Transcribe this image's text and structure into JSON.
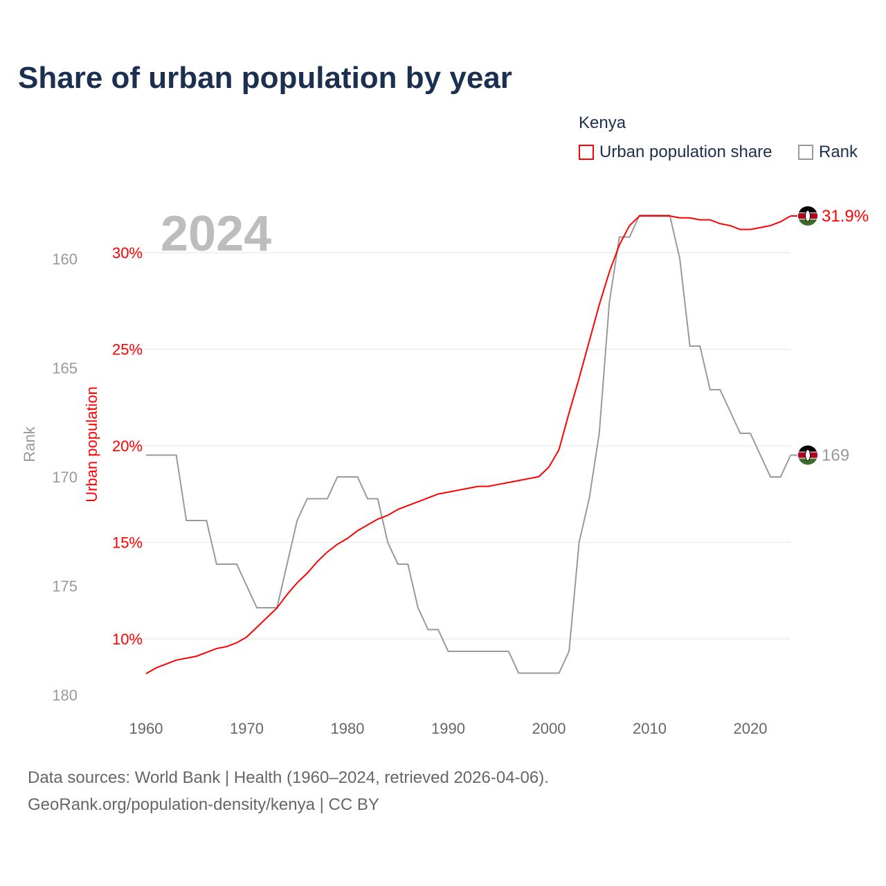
{
  "title": "Share of urban population by year",
  "legend": {
    "title": "Kenya",
    "items": [
      {
        "label": "Urban population share",
        "color": "#ff0000"
      },
      {
        "label": "Rank",
        "color": "#999999"
      }
    ]
  },
  "year_watermark": "2024",
  "footer": {
    "line1": "Data sources: World Bank | Health (1960–2024, retrieved 2026-04-06).",
    "line2": "GeoRank.org/population-density/kenya | CC BY"
  },
  "chart_data": {
    "type": "line",
    "title": "Share of urban population by year",
    "xlabel": "",
    "x": [
      1960,
      1961,
      1962,
      1963,
      1964,
      1965,
      1966,
      1967,
      1968,
      1969,
      1970,
      1971,
      1972,
      1973,
      1974,
      1975,
      1976,
      1977,
      1978,
      1979,
      1980,
      1981,
      1982,
      1983,
      1984,
      1985,
      1986,
      1987,
      1988,
      1989,
      1990,
      1991,
      1992,
      1993,
      1994,
      1995,
      1996,
      1997,
      1998,
      1999,
      2000,
      2001,
      2002,
      2003,
      2004,
      2005,
      2006,
      2007,
      2008,
      2009,
      2010,
      2011,
      2012,
      2013,
      2014,
      2015,
      2016,
      2017,
      2018,
      2019,
      2020,
      2021,
      2022,
      2023,
      2024
    ],
    "xticks": [
      "1960",
      "1970",
      "1980",
      "1990",
      "2000",
      "2010",
      "2020"
    ],
    "series": [
      {
        "name": "Urban population share",
        "axis": "left-inner",
        "ylabel": "Urban population",
        "color": "#ff0000",
        "end_label": "31.9%",
        "values": [
          8.2,
          8.5,
          8.7,
          8.9,
          9.0,
          9.1,
          9.3,
          9.5,
          9.6,
          9.8,
          10.1,
          10.6,
          11.1,
          11.6,
          12.3,
          12.9,
          13.4,
          14.0,
          14.5,
          14.9,
          15.2,
          15.6,
          15.9,
          16.2,
          16.4,
          16.7,
          16.9,
          17.1,
          17.3,
          17.5,
          17.6,
          17.7,
          17.8,
          17.9,
          17.9,
          18.0,
          18.1,
          18.2,
          18.3,
          18.4,
          18.9,
          19.8,
          21.7,
          23.5,
          25.4,
          27.3,
          29.0,
          30.4,
          31.4,
          31.9,
          31.9,
          31.9,
          31.9,
          31.8,
          31.8,
          31.7,
          31.7,
          31.5,
          31.4,
          31.2,
          31.2,
          31.3,
          31.4,
          31.6,
          31.9
        ],
        "yticks": [
          "10%",
          "15%",
          "20%",
          "25%",
          "30%"
        ],
        "ylim": [
          8,
          32
        ]
      },
      {
        "name": "Rank",
        "axis": "left-outer",
        "ylabel": "Rank",
        "color": "#999999",
        "end_label": "169",
        "inverted": true,
        "values": [
          169,
          169,
          169,
          169,
          172,
          172,
          172,
          174,
          174,
          174,
          175,
          176,
          176,
          176,
          174,
          172,
          171,
          171,
          171,
          170,
          170,
          170,
          171,
          171,
          173,
          174,
          174,
          176,
          177,
          177,
          178,
          178,
          178,
          178,
          178,
          178,
          178,
          179,
          179,
          179,
          179,
          179,
          178,
          173,
          171,
          168,
          162,
          159,
          159,
          158,
          158,
          158,
          158,
          160,
          164,
          164,
          166,
          166,
          167,
          168,
          168,
          169,
          170,
          170,
          169
        ],
        "yticks": [
          "160",
          "165",
          "170",
          "175",
          "180"
        ],
        "ylim": [
          158,
          180
        ]
      }
    ],
    "grid": true,
    "legend_position": "top-right"
  }
}
